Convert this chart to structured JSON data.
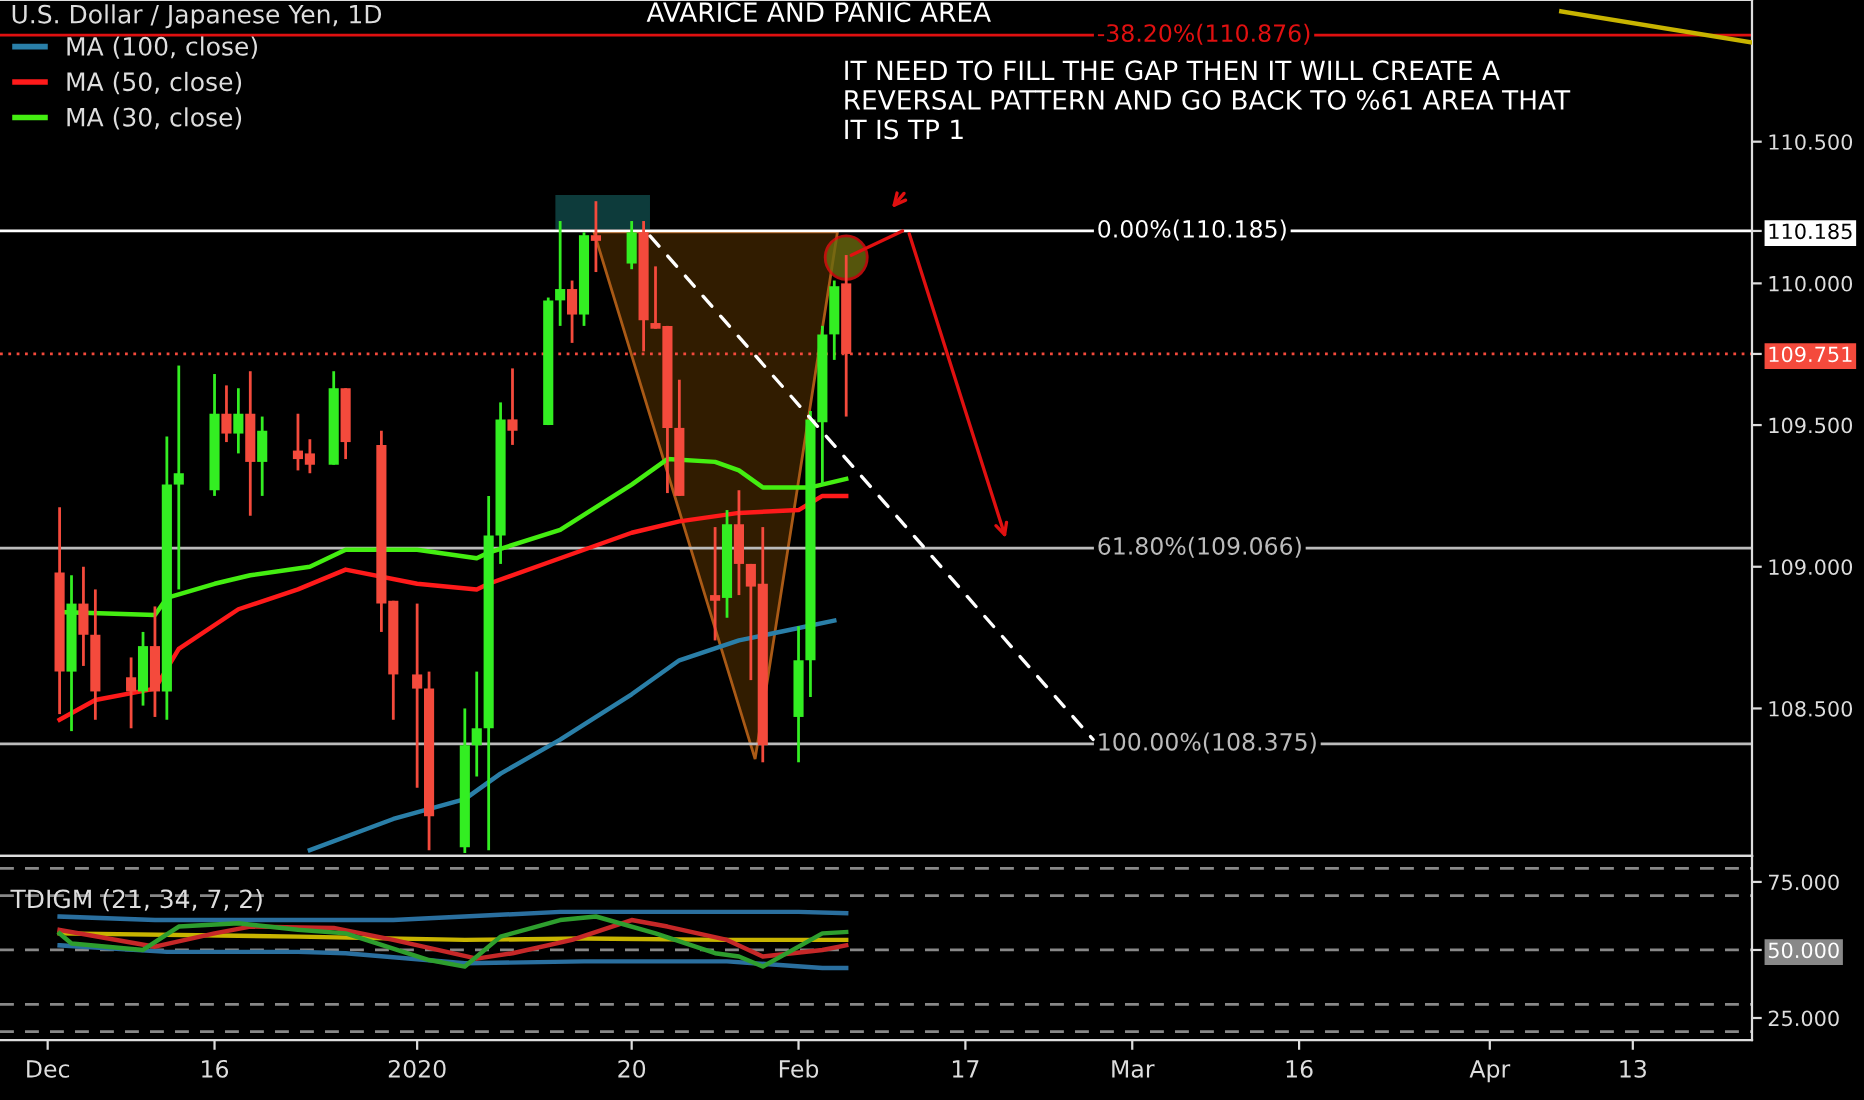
{
  "chart_data": [
    {
      "type": "candlestick",
      "title": "U.S. Dollar / Japanese Yen, 1D",
      "x": [
        "2019-12-03",
        "2019-12-04",
        "2019-12-05",
        "2019-12-06",
        "2019-12-09",
        "2019-12-10",
        "2019-12-11",
        "2019-12-12",
        "2019-12-13",
        "2019-12-16",
        "2019-12-17",
        "2019-12-18",
        "2019-12-19",
        "2019-12-20",
        "2019-12-23",
        "2019-12-24",
        "2019-12-26",
        "2019-12-27",
        "2019-12-30",
        "2019-12-31",
        "2020-01-02",
        "2020-01-03",
        "2020-01-06",
        "2020-01-07",
        "2020-01-08",
        "2020-01-09",
        "2020-01-10",
        "2020-01-13",
        "2020-01-14",
        "2020-01-15",
        "2020-01-16",
        "2020-01-17",
        "2020-01-20",
        "2020-01-21",
        "2020-01-22",
        "2020-01-23",
        "2020-01-24",
        "2020-01-27",
        "2020-01-28",
        "2020-01-29",
        "2020-01-30",
        "2020-01-31",
        "2020-02-03",
        "2020-02-04",
        "2020-02-05",
        "2020-02-06",
        "2020-02-07"
      ],
      "ohlc": [
        [
          108.98,
          109.21,
          108.48,
          108.63
        ],
        [
          108.63,
          108.97,
          108.42,
          108.87
        ],
        [
          108.87,
          109.0,
          108.65,
          108.76
        ],
        [
          108.76,
          108.92,
          108.46,
          108.56
        ],
        [
          108.61,
          108.68,
          108.43,
          108.56
        ],
        [
          108.56,
          108.77,
          108.51,
          108.72
        ],
        [
          108.72,
          108.86,
          108.47,
          108.56
        ],
        [
          108.56,
          109.46,
          108.46,
          109.29
        ],
        [
          109.29,
          109.71,
          108.92,
          109.33
        ],
        [
          109.27,
          109.68,
          109.25,
          109.54
        ],
        [
          109.54,
          109.64,
          109.44,
          109.47
        ],
        [
          109.47,
          109.63,
          109.4,
          109.54
        ],
        [
          109.54,
          109.69,
          109.18,
          109.37
        ],
        [
          109.37,
          109.53,
          109.25,
          109.48
        ],
        [
          109.41,
          109.54,
          109.34,
          109.38
        ],
        [
          109.4,
          109.45,
          109.33,
          109.36
        ],
        [
          109.36,
          109.69,
          109.36,
          109.63
        ],
        [
          109.63,
          109.63,
          109.38,
          109.44
        ],
        [
          109.43,
          109.48,
          108.77,
          108.87
        ],
        [
          108.88,
          108.88,
          108.46,
          108.62
        ],
        [
          108.62,
          108.87,
          108.22,
          108.57
        ],
        [
          108.57,
          108.63,
          108.0,
          108.12
        ],
        [
          108.01,
          108.5,
          107.99,
          108.37
        ],
        [
          108.37,
          108.63,
          108.26,
          108.43
        ],
        [
          108.43,
          109.25,
          108.0,
          109.11
        ],
        [
          109.11,
          109.58,
          109.01,
          109.52
        ],
        [
          109.52,
          109.7,
          109.43,
          109.48
        ],
        [
          109.5,
          109.95,
          109.5,
          109.94
        ],
        [
          109.94,
          110.22,
          109.85,
          109.98
        ],
        [
          109.98,
          110.01,
          109.79,
          109.89
        ],
        [
          109.89,
          110.18,
          109.85,
          110.17
        ],
        [
          110.17,
          110.29,
          110.04,
          110.15
        ],
        [
          110.07,
          110.22,
          110.05,
          110.18
        ],
        [
          110.18,
          110.22,
          109.76,
          109.87
        ],
        [
          109.86,
          110.06,
          109.84,
          109.84
        ],
        [
          109.85,
          109.85,
          109.26,
          109.49
        ],
        [
          109.49,
          109.66,
          109.25,
          109.25
        ],
        [
          108.9,
          109.14,
          108.74,
          108.88
        ],
        [
          108.89,
          109.2,
          108.82,
          109.15
        ],
        [
          109.15,
          109.27,
          108.9,
          109.01
        ],
        [
          109.01,
          109.01,
          108.6,
          108.93
        ],
        [
          108.94,
          109.14,
          108.31,
          108.37
        ],
        [
          108.47,
          108.79,
          108.31,
          108.67
        ],
        [
          108.67,
          109.55,
          108.54,
          109.52
        ],
        [
          109.51,
          109.85,
          109.29,
          109.82
        ],
        [
          109.82,
          110.01,
          109.73,
          109.99
        ],
        [
          110.0,
          110.1,
          109.53,
          109.751
        ]
      ],
      "colors": [
        "#f44a3c",
        "#33ee22",
        "#f44a3c",
        "#f44a3c",
        "#f44a3c",
        "#33ee22",
        "#f44a3c",
        "#33ee22",
        "#33ee22",
        "#33ee22",
        "#f44a3c",
        "#33ee22",
        "#f44a3c",
        "#33ee22",
        "#f44a3c",
        "#f44a3c",
        "#33ee22",
        "#f44a3c",
        "#f44a3c",
        "#f44a3c",
        "#f44a3c",
        "#f44a3c",
        "#33ee22",
        "#33ee22",
        "#33ee22",
        "#33ee22",
        "#f44a3c",
        "#33ee22",
        "#33ee22",
        "#f44a3c",
        "#33ee22",
        "#f44a3c",
        "#33ee22",
        "#f44a3c",
        "#f44a3c",
        "#f44a3c",
        "#f44a3c",
        "#f44a3c",
        "#33ee22",
        "#f44a3c",
        "#f44a3c",
        "#f44a3c",
        "#33ee22",
        "#33ee22",
        "#33ee22",
        "#33ee22",
        "#f44a3c"
      ],
      "series": [
        {
          "type": "line",
          "name": "MA (100, close)",
          "color": "#2a7fa8",
          "x": [
            "2019-12-24",
            "2019-12-31",
            "2020-01-06",
            "2020-01-09",
            "2020-01-14",
            "2020-01-20",
            "2020-01-24",
            "2020-01-29",
            "2020-02-06"
          ],
          "values": [
            108.0,
            108.11,
            108.18,
            108.27,
            108.39,
            108.55,
            108.67,
            108.74,
            108.81
          ]
        },
        {
          "type": "line",
          "name": "MA (50, close)",
          "color": "#ff1a1a",
          "x": [
            "2019-12-03",
            "2019-12-06",
            "2019-12-11",
            "2019-12-13",
            "2019-12-18",
            "2019-12-23",
            "2019-12-27",
            "2020-01-02",
            "2020-01-07",
            "2020-01-08",
            "2020-01-14",
            "2020-01-20",
            "2020-01-24",
            "2020-01-29",
            "2020-02-03",
            "2020-02-05",
            "2020-02-07"
          ],
          "values": [
            108.46,
            108.53,
            108.57,
            108.71,
            108.85,
            108.92,
            108.99,
            108.94,
            108.92,
            108.94,
            109.03,
            109.12,
            109.16,
            109.19,
            109.2,
            109.25,
            109.25
          ]
        },
        {
          "type": "line",
          "name": "MA (30, close)",
          "color": "#44ee11",
          "x": [
            "2019-12-03",
            "2019-12-11",
            "2019-12-12",
            "2019-12-16",
            "2019-12-19",
            "2019-12-24",
            "2019-12-27",
            "2020-01-02",
            "2020-01-07",
            "2020-01-08",
            "2020-01-14",
            "2020-01-20",
            "2020-01-23",
            "2020-01-27",
            "2020-01-29",
            "2020-01-31",
            "2020-02-04",
            "2020-02-07"
          ],
          "values": [
            108.84,
            108.83,
            108.89,
            108.94,
            108.97,
            109.0,
            109.06,
            109.06,
            109.03,
            109.05,
            109.13,
            109.29,
            109.38,
            109.37,
            109.34,
            109.28,
            109.28,
            109.31
          ]
        },
        {
          "type": "line",
          "color": "#c8b400",
          "x": [
            "2020-04-07",
            "2020-04-23"
          ],
          "values": [
            110.96,
            110.85
          ]
        }
      ],
      "xlim": [
        "2019-11-28",
        "2020-04-23"
      ],
      "ylim": [
        107.98,
        111.0
      ],
      "yticks": [
        {
          "value": 108.5,
          "label": "108.500"
        },
        {
          "value": 109.0,
          "label": "109.000"
        },
        {
          "value": 109.5,
          "label": "109.500"
        },
        {
          "value": 109.751,
          "label": "109.751"
        },
        {
          "value": 110.0,
          "label": "110.000"
        },
        {
          "value": 110.185,
          "label": "110.185"
        },
        {
          "value": 110.5,
          "label": "110.500"
        }
      ],
      "tick_labels": "y",
      "grid": false,
      "legend": "top left",
      "ref_lines": [
        {
          "axis": "y",
          "value": 110.876,
          "label": "-38.20%(110.876)",
          "color": "#e01010"
        },
        {
          "axis": "y",
          "value": 110.185,
          "label": "0.00%(110.185)",
          "color": "#ffffff"
        },
        {
          "axis": "y",
          "value": 109.751,
          "color": "#f44a3c",
          "line_style": "dotted"
        },
        {
          "axis": "y",
          "value": 109.066,
          "label": "61.80%(109.066)",
          "color": "#bbbbbb"
        },
        {
          "axis": "y",
          "value": 108.375,
          "label": "100.00%(108.375)",
          "color": "#bbbbbb"
        }
      ],
      "annotations": [
        "AVARICE AND PANIC AREA",
        "IT NEED TO FILL THE GAP THEN IT WILL CREATE A\nREVERSAL PATTERN AND GO BACK TO %61 AREA THAT\nIT IS TP 1"
      ]
    },
    {
      "type": "line",
      "title": "TDIGM (21, 34, 7, 2)",
      "series": [
        {
          "color": "#2a6f9f",
          "x": [
            "2019-12-03",
            "2019-12-11",
            "2019-12-23",
            "2019-12-31",
            "2020-01-14",
            "2020-01-22",
            "2020-02-03",
            "2020-02-07"
          ],
          "values": [
            62.3,
            61.0,
            61.0,
            61.0,
            64.0,
            64.0,
            64.0,
            63.5
          ]
        },
        {
          "color": "#2a6f9f",
          "x": [
            "2019-12-03",
            "2019-12-12",
            "2019-12-23",
            "2019-12-27",
            "2020-01-06",
            "2020-01-16",
            "2020-01-28",
            "2020-02-05",
            "2020-02-07"
          ],
          "values": [
            51.7,
            49.3,
            49.3,
            48.8,
            45.1,
            45.8,
            45.8,
            43.4,
            43.4
          ]
        },
        {
          "color": "#c8b400",
          "x": [
            "2019-12-03",
            "2019-12-23",
            "2020-01-06",
            "2020-01-16",
            "2020-01-28",
            "2020-02-07"
          ],
          "values": [
            56.1,
            54.9,
            53.7,
            54.2,
            53.7,
            53.7
          ]
        },
        {
          "color": "#c62828",
          "x": [
            "2019-12-03",
            "2019-12-11",
            "2019-12-16",
            "2019-12-19",
            "2019-12-26",
            "2019-12-31",
            "2020-01-07",
            "2020-01-10",
            "2020-01-15",
            "2020-01-20",
            "2020-01-23",
            "2020-01-28",
            "2020-01-31",
            "2020-02-05",
            "2020-02-07"
          ],
          "values": [
            57.4,
            51.2,
            56.1,
            58.6,
            58.1,
            53.7,
            46.8,
            48.8,
            53.7,
            61.0,
            58.6,
            53.7,
            47.6,
            50.0,
            51.7
          ]
        },
        {
          "color": "#2e9e2e",
          "x": [
            "2019-12-03",
            "2019-12-04",
            "2019-12-10",
            "2019-12-13",
            "2019-12-18",
            "2019-12-23",
            "2019-12-27",
            "2020-01-03",
            "2020-01-06",
            "2020-01-09",
            "2020-01-14",
            "2020-01-17",
            "2020-01-22",
            "2020-01-27",
            "2020-01-29",
            "2020-01-31",
            "2020-02-05",
            "2020-02-07"
          ],
          "values": [
            56.1,
            52.4,
            50.0,
            58.6,
            59.8,
            57.4,
            56.1,
            46.3,
            43.9,
            54.9,
            61.0,
            62.3,
            56.1,
            48.8,
            47.6,
            43.9,
            56.1,
            56.6
          ]
        }
      ],
      "xlim": [
        "2019-11-28",
        "2020-04-23"
      ],
      "ylim": [
        16.9,
        84.6
      ],
      "xticks": [
        {
          "value": "2019-12-02",
          "label": "Dec"
        },
        {
          "value": "2019-12-16",
          "label": "16"
        },
        {
          "value": "2020-01-02",
          "label": "2020"
        },
        {
          "value": "2020-01-20",
          "label": "20"
        },
        {
          "value": "2020-02-03",
          "label": "Feb"
        },
        {
          "value": "2020-02-17",
          "label": "17"
        },
        {
          "value": "2020-03-02",
          "label": "Mar"
        },
        {
          "value": "2020-03-16",
          "label": "16"
        },
        {
          "value": "2020-04-01",
          "label": "Apr"
        },
        {
          "value": "2020-04-13",
          "label": "13"
        }
      ],
      "yticks": [
        {
          "value": 25,
          "label": "25.000"
        },
        {
          "value": 50,
          "label": "50.000"
        },
        {
          "value": 75,
          "label": "75.000"
        }
      ],
      "grid": false,
      "ref_lines": [
        {
          "axis": "y",
          "value": 80,
          "color": "#888888",
          "line_style": "dashed"
        },
        {
          "axis": "y",
          "value": 70,
          "color": "#888888",
          "line_style": "dashed"
        },
        {
          "axis": "y",
          "value": 50,
          "color": "#888888",
          "line_style": "dashed"
        },
        {
          "axis": "y",
          "value": 30,
          "color": "#888888",
          "line_style": "dashed"
        },
        {
          "axis": "y",
          "value": 20,
          "color": "#888888",
          "line_style": "dashed"
        }
      ]
    }
  ]
}
